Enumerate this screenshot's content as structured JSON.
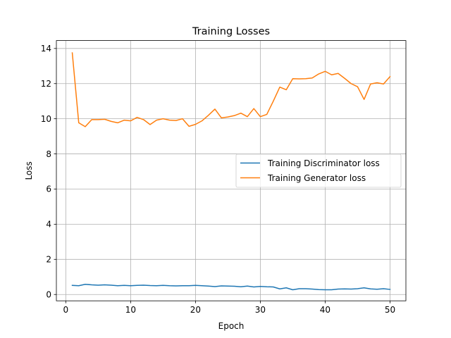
{
  "chart_data": {
    "type": "line",
    "title": "Training Losses",
    "xlabel": "Epoch",
    "ylabel": "Loss",
    "xlim": [
      -1.45,
      52.45
    ],
    "ylim": [
      -0.36,
      14.45
    ],
    "xticks": [
      0,
      10,
      20,
      30,
      40,
      50
    ],
    "yticks": [
      0,
      2,
      4,
      6,
      8,
      10,
      12,
      14
    ],
    "grid": true,
    "legend_position": "center-right",
    "x": [
      1,
      2,
      3,
      4,
      5,
      6,
      7,
      8,
      9,
      10,
      11,
      12,
      13,
      14,
      15,
      16,
      17,
      18,
      19,
      20,
      21,
      22,
      23,
      24,
      25,
      26,
      27,
      28,
      29,
      30,
      31,
      32,
      33,
      34,
      35,
      36,
      37,
      38,
      39,
      40,
      41,
      42,
      43,
      44,
      45,
      46,
      47,
      48,
      49,
      50
    ],
    "series": [
      {
        "name": "Training Discriminator loss",
        "color": "#1f77b4",
        "values": [
          0.52,
          0.5,
          0.58,
          0.55,
          0.53,
          0.55,
          0.53,
          0.5,
          0.52,
          0.5,
          0.52,
          0.53,
          0.51,
          0.5,
          0.52,
          0.5,
          0.49,
          0.5,
          0.5,
          0.52,
          0.5,
          0.48,
          0.45,
          0.49,
          0.48,
          0.47,
          0.44,
          0.48,
          0.43,
          0.46,
          0.44,
          0.43,
          0.32,
          0.38,
          0.27,
          0.33,
          0.33,
          0.31,
          0.28,
          0.27,
          0.27,
          0.31,
          0.32,
          0.31,
          0.33,
          0.38,
          0.32,
          0.3,
          0.33,
          0.29
        ]
      },
      {
        "name": "Training Generator loss",
        "color": "#ff7f0e",
        "values": [
          13.75,
          9.77,
          9.55,
          9.95,
          9.95,
          9.97,
          9.85,
          9.77,
          9.92,
          9.88,
          10.08,
          9.95,
          9.67,
          9.92,
          10.0,
          9.92,
          9.9,
          10.0,
          9.57,
          9.68,
          9.88,
          10.2,
          10.55,
          10.05,
          10.1,
          10.18,
          10.32,
          10.12,
          10.58,
          10.12,
          10.25,
          11.0,
          11.8,
          11.65,
          12.28,
          12.27,
          12.28,
          12.32,
          12.55,
          12.7,
          12.5,
          12.58,
          12.3,
          12.0,
          11.82,
          11.1,
          11.98,
          12.05,
          11.98,
          12.4
        ]
      }
    ]
  }
}
